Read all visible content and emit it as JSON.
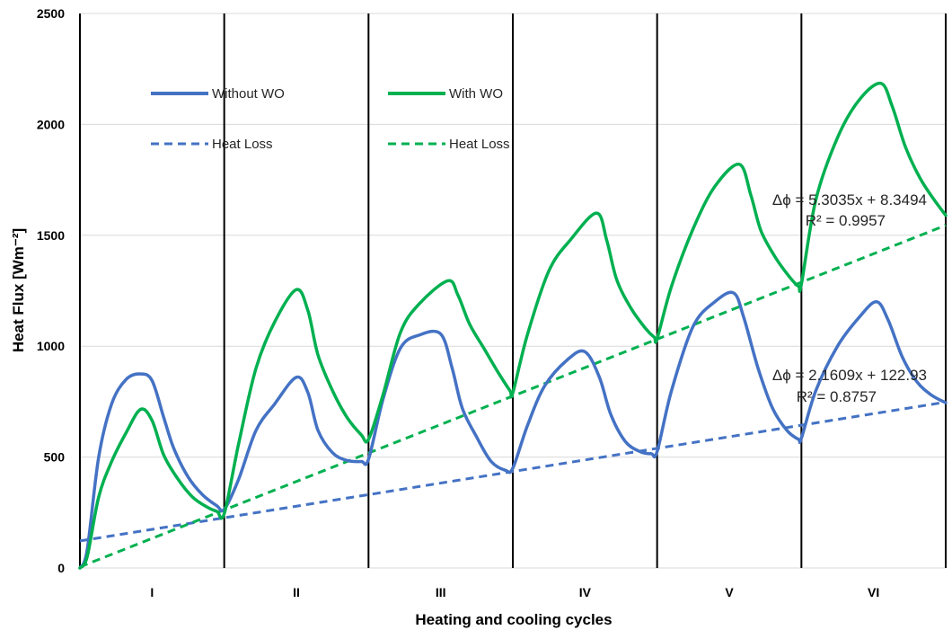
{
  "chart_data": {
    "type": "line",
    "title": "",
    "xlabel": "Heating and cooling cycles",
    "ylabel": "Heat Flux [Wm⁻²]",
    "ylim": [
      0,
      2500
    ],
    "yticks": [
      0,
      500,
      1000,
      1500,
      2000,
      2500
    ],
    "xlim": [
      0,
      6
    ],
    "categories": [
      "I",
      "II",
      "III",
      "IV",
      "V",
      "VI"
    ],
    "grid": "horizontal",
    "cycle_dividers": [
      0,
      1,
      2,
      3,
      4,
      5,
      6
    ],
    "legend_position": "top-left",
    "colors": {
      "blue": "#4472C4",
      "green": "#00B050"
    },
    "series": [
      {
        "name": "Without WO",
        "style": "solid",
        "color": "#4472C4",
        "x": [
          0.0,
          0.05,
          0.13,
          0.22,
          0.32,
          0.42,
          0.5,
          0.58,
          0.65,
          0.75,
          0.85,
          0.95,
          1.0,
          1.1,
          1.22,
          1.35,
          1.5,
          1.58,
          1.65,
          1.75,
          1.85,
          1.95,
          2.0,
          2.1,
          2.22,
          2.35,
          2.5,
          2.58,
          2.65,
          2.75,
          2.85,
          2.95,
          3.0,
          3.1,
          3.22,
          3.38,
          3.5,
          3.6,
          3.68,
          3.78,
          3.88,
          3.96,
          4.0,
          4.1,
          4.25,
          4.4,
          4.53,
          4.6,
          4.7,
          4.8,
          4.9,
          4.98,
          5.0,
          5.1,
          5.25,
          5.4,
          5.52,
          5.6,
          5.7,
          5.8,
          5.9,
          6.0
        ],
        "y": [
          0,
          80,
          500,
          740,
          850,
          875,
          845,
          680,
          540,
          410,
          330,
          280,
          265,
          400,
          620,
          740,
          860,
          790,
          620,
          520,
          485,
          480,
          490,
          760,
          990,
          1050,
          1055,
          900,
          720,
          590,
          480,
          440,
          450,
          640,
          820,
          940,
          975,
          860,
          690,
          570,
          525,
          515,
          525,
          800,
          1090,
          1200,
          1240,
          1130,
          900,
          720,
          620,
          580,
          585,
          800,
          1000,
          1130,
          1200,
          1120,
          950,
          840,
          780,
          745
        ]
      },
      {
        "name": "With WO",
        "style": "solid",
        "color": "#00B050",
        "x": [
          0.0,
          0.05,
          0.13,
          0.22,
          0.32,
          0.42,
          0.5,
          0.58,
          0.68,
          0.78,
          0.88,
          0.95,
          1.0,
          1.1,
          1.22,
          1.35,
          1.5,
          1.58,
          1.65,
          1.75,
          1.85,
          1.95,
          2.0,
          2.1,
          2.22,
          2.35,
          2.55,
          2.62,
          2.7,
          2.8,
          2.9,
          2.98,
          3.0,
          3.1,
          3.25,
          3.4,
          3.58,
          3.65,
          3.72,
          3.82,
          3.92,
          3.98,
          4.0,
          4.1,
          4.25,
          4.4,
          4.57,
          4.65,
          4.72,
          4.82,
          4.92,
          4.98,
          5.0,
          5.1,
          5.25,
          5.4,
          5.55,
          5.63,
          5.72,
          5.82,
          5.92,
          6.0
        ],
        "y": [
          0,
          50,
          320,
          480,
          610,
          715,
          665,
          510,
          400,
          320,
          275,
          255,
          245,
          560,
          900,
          1110,
          1255,
          1160,
          960,
          800,
          680,
          600,
          580,
          780,
          1060,
          1190,
          1295,
          1230,
          1100,
          990,
          880,
          800,
          790,
          1050,
          1340,
          1480,
          1600,
          1480,
          1300,
          1170,
          1080,
          1040,
          1035,
          1270,
          1530,
          1720,
          1820,
          1680,
          1520,
          1400,
          1310,
          1270,
          1280,
          1660,
          1940,
          2110,
          2185,
          2080,
          1900,
          1760,
          1660,
          1590
        ]
      },
      {
        "name": "Heat Loss",
        "style": "dashed",
        "color": "#4472C4",
        "trend": {
          "slope": 2.1609,
          "intercept": 122.93
        },
        "x": [
          0,
          6
        ],
        "y": [
          122,
          748
        ]
      },
      {
        "name": "Heat Loss",
        "style": "dashed",
        "color": "#00B050",
        "trend": {
          "slope": 5.3035,
          "intercept": 8.3494
        },
        "x": [
          0,
          6
        ],
        "y": [
          5,
          1545
        ]
      }
    ],
    "annotations": [
      {
        "equation": "Δϕ = 5.3035x + 8.3494",
        "r2": "R² = 0.9957",
        "series": "With WO"
      },
      {
        "equation": "Δϕ  = 2.1609x + 122.93",
        "r2": "R² = 0.8757",
        "series": "Without WO"
      }
    ]
  }
}
